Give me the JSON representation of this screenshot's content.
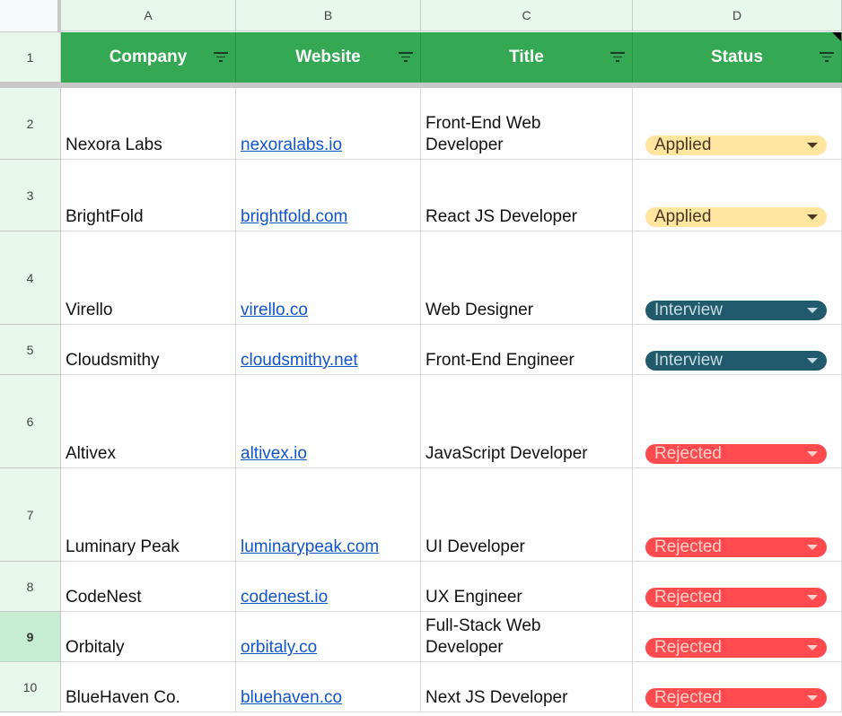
{
  "columns": [
    "A",
    "B",
    "C",
    "D"
  ],
  "headers": [
    "Company",
    "Website",
    "Title",
    "Status"
  ],
  "status_colors": {
    "Applied": {
      "bg": "#ffe5a0",
      "fg": "#473821"
    },
    "Interview": {
      "bg": "#215a6c",
      "fg": "#c6dbe1"
    },
    "Rejected": {
      "bg": "#ff4a4f",
      "fg": "#ffcfc9"
    }
  },
  "selected_row": 9,
  "rows": [
    {
      "num": "2",
      "company": "Nexora Labs",
      "website": "nexoralabs.io",
      "title": "Front-End Web Developer",
      "status": "Applied"
    },
    {
      "num": "3",
      "company": "BrightFold",
      "website": "brightfold.com",
      "title": "React JS Developer",
      "status": "Applied"
    },
    {
      "num": "4",
      "company": "Virello",
      "website": "virello.co",
      "title": "Web Designer",
      "status": "Interview"
    },
    {
      "num": "5",
      "company": "Cloudsmithy",
      "website": "cloudsmithy.net",
      "title": "Front-End Engineer",
      "status": "Interview"
    },
    {
      "num": "6",
      "company": "Altivex",
      "website": "altivex.io",
      "title": "JavaScript Developer",
      "status": "Rejected"
    },
    {
      "num": "7",
      "company": "Luminary Peak",
      "website": "luminarypeak.com",
      "title": "UI Developer",
      "status": "Rejected"
    },
    {
      "num": "8",
      "company": "CodeNest",
      "website": "codenest.io",
      "title": "UX Engineer",
      "status": "Rejected"
    },
    {
      "num": "9",
      "company": "Orbitaly",
      "website": "orbitaly.co",
      "title": "Full-Stack Web Developer",
      "status": "Rejected"
    },
    {
      "num": "10",
      "company": "BlueHaven Co.",
      "website": "bluehaven.co",
      "title": "Next JS Developer",
      "status": "Rejected"
    }
  ]
}
